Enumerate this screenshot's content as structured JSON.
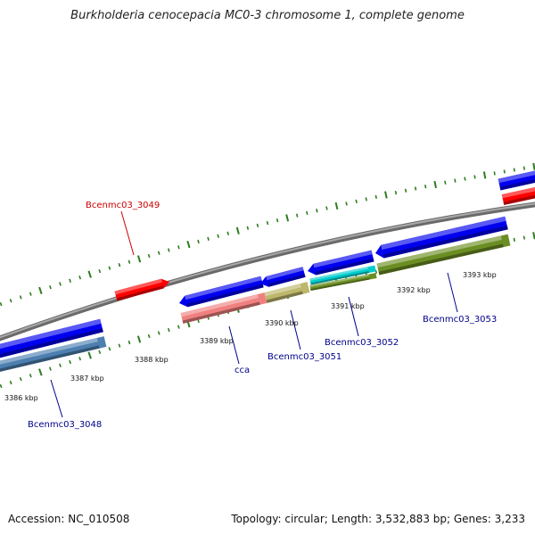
{
  "title": "Burkholderia cenocepacia MC0-3 chromosome 1, complete genome",
  "footer": {
    "accession": "Accession: NC_010508",
    "summary": "Topology: circular; Length: 3,532,883 bp; Genes: 3,233"
  },
  "colors": {
    "backbone": "#8c8c8c",
    "tick": "#2e7d1e",
    "forward_label": "#cc0000",
    "reverse_label": "#00008b",
    "forward_cds": "#ff0000",
    "reverse_cds": "#0000ee"
  },
  "scale": {
    "unit": "kbp",
    "labels": [
      {
        "kbp": 3386,
        "text": "3386 kbp"
      },
      {
        "kbp": 3387,
        "text": "3387 kbp"
      },
      {
        "kbp": 3388,
        "text": "3388 kbp"
      },
      {
        "kbp": 3389,
        "text": "3389 kbp"
      },
      {
        "kbp": 3390,
        "text": "3390 kbp"
      },
      {
        "kbp": 3391,
        "text": "3391 kbp"
      },
      {
        "kbp": 3392,
        "text": "3392 kbp"
      },
      {
        "kbp": 3393,
        "text": "3393 kbp"
      }
    ]
  },
  "features": [
    {
      "name": "Bcenmc03_3048",
      "label": "Bcenmc03_3048",
      "strand": "-",
      "type": "gene",
      "color": "#0000ee"
    },
    {
      "name": "Bcenmc03_3048-protein",
      "strand": "-",
      "type": "cds",
      "color": "#4d7fb0"
    },
    {
      "name": "Bcenmc03_3049",
      "label": "Bcenmc03_3049",
      "strand": "+",
      "type": "gene",
      "color": "#ff0000"
    },
    {
      "name": "cca",
      "label": "cca",
      "strand": "-",
      "type": "gene",
      "color": "#0000ee"
    },
    {
      "name": "cca-protein",
      "strand": "-",
      "type": "cds",
      "color": "#f08080"
    },
    {
      "name": "Bcenmc03_3051",
      "label": "Bcenmc03_3051",
      "strand": "-",
      "type": "gene",
      "color": "#0000ee"
    },
    {
      "name": "Bcenmc03_3051-protein",
      "strand": "-",
      "type": "cds",
      "color": "#bdb76b"
    },
    {
      "name": "Bcenmc03_3052",
      "label": "Bcenmc03_3052",
      "strand": "-",
      "type": "gene",
      "color": "#0000ee"
    },
    {
      "name": "Bcenmc03_3052-protein",
      "strand": "-",
      "type": "cds",
      "color": "#00cccc"
    },
    {
      "name": "Bcenmc03_3053",
      "label": "Bcenmc03_3053",
      "strand": "-",
      "type": "gene",
      "color": "#0000ee"
    },
    {
      "name": "Bcenmc03_3053-protein",
      "strand": "-",
      "type": "cds",
      "color": "#6b8e23"
    },
    {
      "name": "next-forward-gene",
      "strand": "+",
      "type": "gene",
      "color": "#ff0000"
    },
    {
      "name": "next-reverse-gene",
      "strand": "-",
      "type": "gene",
      "color": "#0000ee"
    }
  ]
}
